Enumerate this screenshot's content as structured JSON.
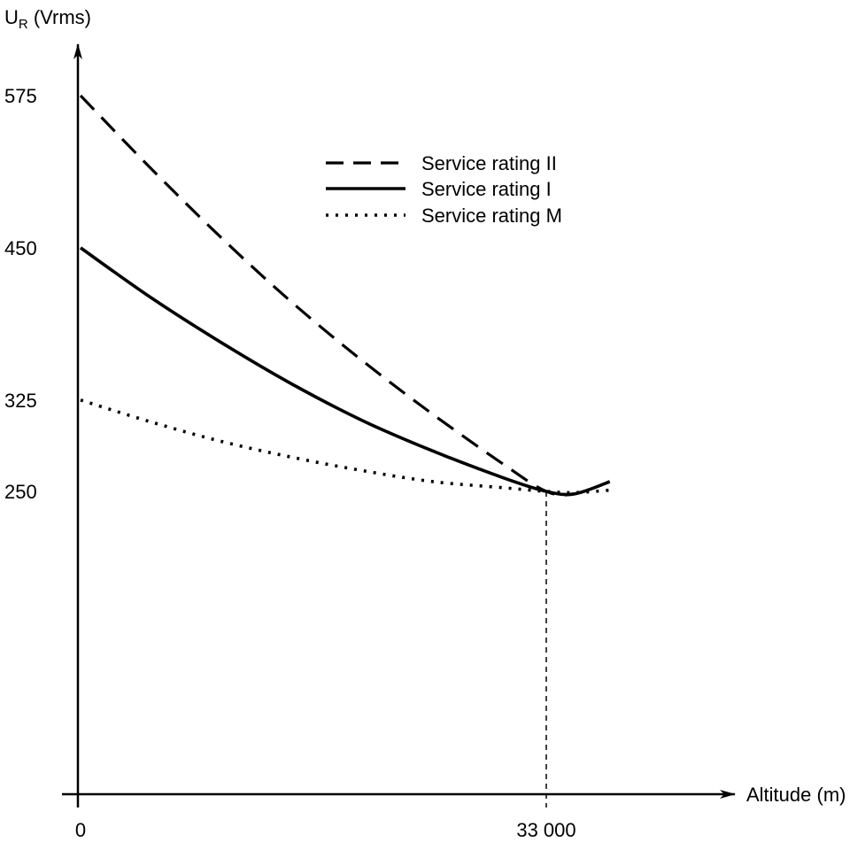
{
  "chart_data": {
    "type": "line",
    "ylabel_main": "U",
    "ylabel_sub": "R",
    "ylabel_unit": " (Vrms)",
    "xlabel": "Altitude (m)",
    "x_ticks": [
      {
        "value": 0,
        "label": "0"
      },
      {
        "value": 33000,
        "label": "33 000"
      }
    ],
    "y_ticks": [
      {
        "value": 575,
        "label": "575"
      },
      {
        "value": 450,
        "label": "450"
      },
      {
        "value": 325,
        "label": "325"
      },
      {
        "value": 250,
        "label": "250"
      }
    ],
    "xlim": [
      0,
      38000
    ],
    "ylim": [
      0,
      610
    ],
    "reference_line": {
      "x": 33000,
      "y": 250
    },
    "series": [
      {
        "name": "Service rating II",
        "style": "dashed",
        "x": [
          0,
          5000,
          10000,
          15000,
          20000,
          25000,
          30000,
          33000,
          35000,
          37500
        ],
        "y": [
          575,
          515,
          458,
          405,
          357,
          313,
          272,
          250,
          248,
          258
        ]
      },
      {
        "name": "Service rating I",
        "style": "solid",
        "x": [
          0,
          5000,
          10000,
          15000,
          20000,
          25000,
          30000,
          33000,
          35000,
          37500
        ],
        "y": [
          450,
          409,
          372,
          338,
          308,
          283,
          261,
          250,
          248,
          258
        ]
      },
      {
        "name": "Service rating M",
        "style": "dotted",
        "x": [
          0,
          5000,
          10000,
          15000,
          20000,
          25000,
          30000,
          33000,
          35000,
          37500
        ],
        "y": [
          325,
          307,
          291,
          278,
          267,
          258,
          253,
          250,
          249,
          251
        ]
      }
    ]
  }
}
